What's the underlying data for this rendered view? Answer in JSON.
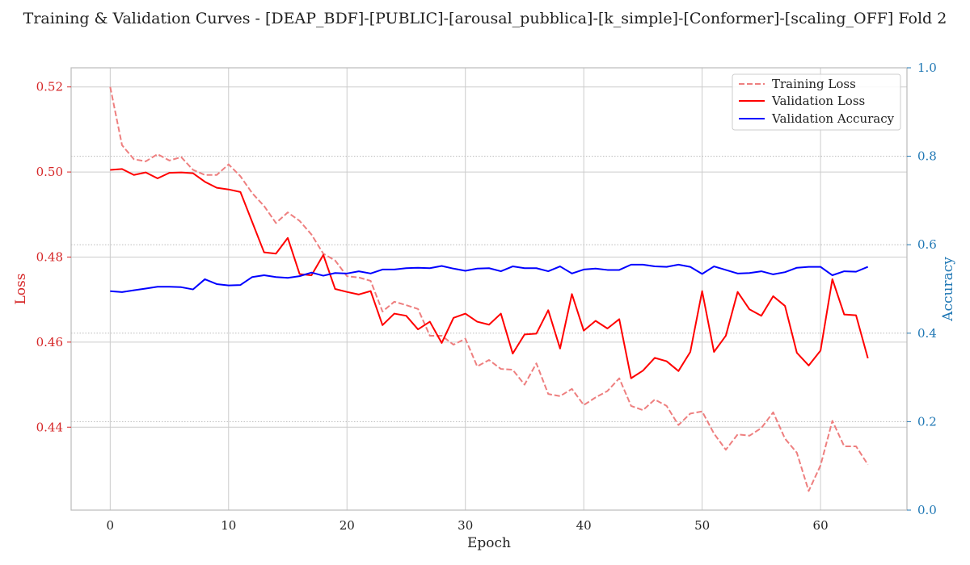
{
  "chart_data": {
    "type": "line",
    "title": "Training & Validation Curves - [DEAP_BDF]-[PUBLIC]-[arousal_pubblica]-[k_simple]-[Conformer]-[scaling_OFF] Fold 2",
    "xlabel": "Epoch",
    "ylabel": "Loss",
    "ylabel_right": "Accuracy",
    "xlim": [
      -3.3,
      67.3
    ],
    "ylim": [
      0.4205,
      0.5245
    ],
    "ylim_right": [
      0.0,
      1.0
    ],
    "x_ticks": [
      0,
      10,
      20,
      30,
      40,
      50,
      60
    ],
    "y_ticks": [
      0.44,
      0.46,
      0.48,
      0.5,
      0.52
    ],
    "y_right_ticks": [
      0.0,
      0.2,
      0.4,
      0.6,
      0.8,
      1.0
    ],
    "grid": true,
    "legend_position": "upper right",
    "colors": {
      "training_loss": "#ee7f7f",
      "validation_loss": "#ff0000",
      "validation_accuracy": "#0000ff",
      "left_axis": "#d62728",
      "right_axis": "#1f77b4"
    },
    "epochs": [
      0,
      1,
      2,
      3,
      4,
      5,
      6,
      7,
      8,
      9,
      10,
      11,
      12,
      13,
      14,
      15,
      16,
      17,
      18,
      19,
      20,
      21,
      22,
      23,
      24,
      25,
      26,
      27,
      28,
      29,
      30,
      31,
      32,
      33,
      34,
      35,
      36,
      37,
      38,
      39,
      40,
      41,
      42,
      43,
      44,
      45,
      46,
      47,
      48,
      49,
      50,
      51,
      52,
      53,
      54,
      55,
      56,
      57,
      58,
      59,
      60,
      61,
      62,
      63,
      64
    ],
    "series": [
      {
        "name": "Training Loss",
        "axis": "left",
        "style": "dashed",
        "values": [
          0.52,
          0.5063,
          0.503,
          0.5025,
          0.5042,
          0.5027,
          0.5035,
          0.5005,
          0.4993,
          0.4993,
          0.5018,
          0.499,
          0.495,
          0.492,
          0.488,
          0.4905,
          0.4885,
          0.4853,
          0.4808,
          0.4792,
          0.4755,
          0.4752,
          0.4744,
          0.4672,
          0.4695,
          0.4687,
          0.4678,
          0.4615,
          0.4615,
          0.4594,
          0.4608,
          0.4543,
          0.4558,
          0.4537,
          0.4535,
          0.45,
          0.455,
          0.4478,
          0.4473,
          0.449,
          0.4452,
          0.447,
          0.4485,
          0.4515,
          0.445,
          0.444,
          0.4465,
          0.445,
          0.4405,
          0.4432,
          0.4437,
          0.4385,
          0.4347,
          0.4383,
          0.438,
          0.4398,
          0.4435,
          0.4373,
          0.434,
          0.425,
          0.431,
          0.4415,
          0.4355,
          0.4355,
          0.4312
        ]
      },
      {
        "name": "Validation Loss",
        "axis": "left",
        "style": "solid",
        "values": [
          0.5005,
          0.5007,
          0.4993,
          0.4999,
          0.4985,
          0.4998,
          0.4999,
          0.4997,
          0.4977,
          0.4963,
          0.4959,
          0.4953,
          0.4882,
          0.4811,
          0.4808,
          0.4845,
          0.476,
          0.4757,
          0.4805,
          0.4725,
          0.4718,
          0.4712,
          0.472,
          0.464,
          0.4667,
          0.4662,
          0.463,
          0.4648,
          0.4598,
          0.4657,
          0.4667,
          0.4648,
          0.4641,
          0.4667,
          0.4573,
          0.4618,
          0.462,
          0.4675,
          0.4585,
          0.4713,
          0.4627,
          0.465,
          0.4632,
          0.4654,
          0.4515,
          0.4533,
          0.4563,
          0.4555,
          0.4532,
          0.4577,
          0.472,
          0.4577,
          0.4615,
          0.4718,
          0.4677,
          0.4662,
          0.4708,
          0.4685,
          0.4575,
          0.4545,
          0.458,
          0.4748,
          0.4665,
          0.4663,
          0.4562
        ]
      },
      {
        "name": "Validation Accuracy",
        "axis": "right",
        "style": "solid",
        "values": [
          0.495,
          0.493,
          0.497,
          0.501,
          0.505,
          0.505,
          0.504,
          0.499,
          0.522,
          0.511,
          0.508,
          0.509,
          0.527,
          0.531,
          0.527,
          0.525,
          0.529,
          0.537,
          0.53,
          0.536,
          0.535,
          0.54,
          0.535,
          0.544,
          0.544,
          0.547,
          0.548,
          0.547,
          0.552,
          0.546,
          0.541,
          0.546,
          0.547,
          0.54,
          0.551,
          0.547,
          0.547,
          0.54,
          0.551,
          0.535,
          0.544,
          0.546,
          0.543,
          0.543,
          0.555,
          0.555,
          0.551,
          0.55,
          0.555,
          0.55,
          0.534,
          0.551,
          0.543,
          0.535,
          0.536,
          0.54,
          0.533,
          0.538,
          0.548,
          0.55,
          0.55,
          0.531,
          0.54,
          0.539,
          0.55
        ]
      }
    ]
  }
}
